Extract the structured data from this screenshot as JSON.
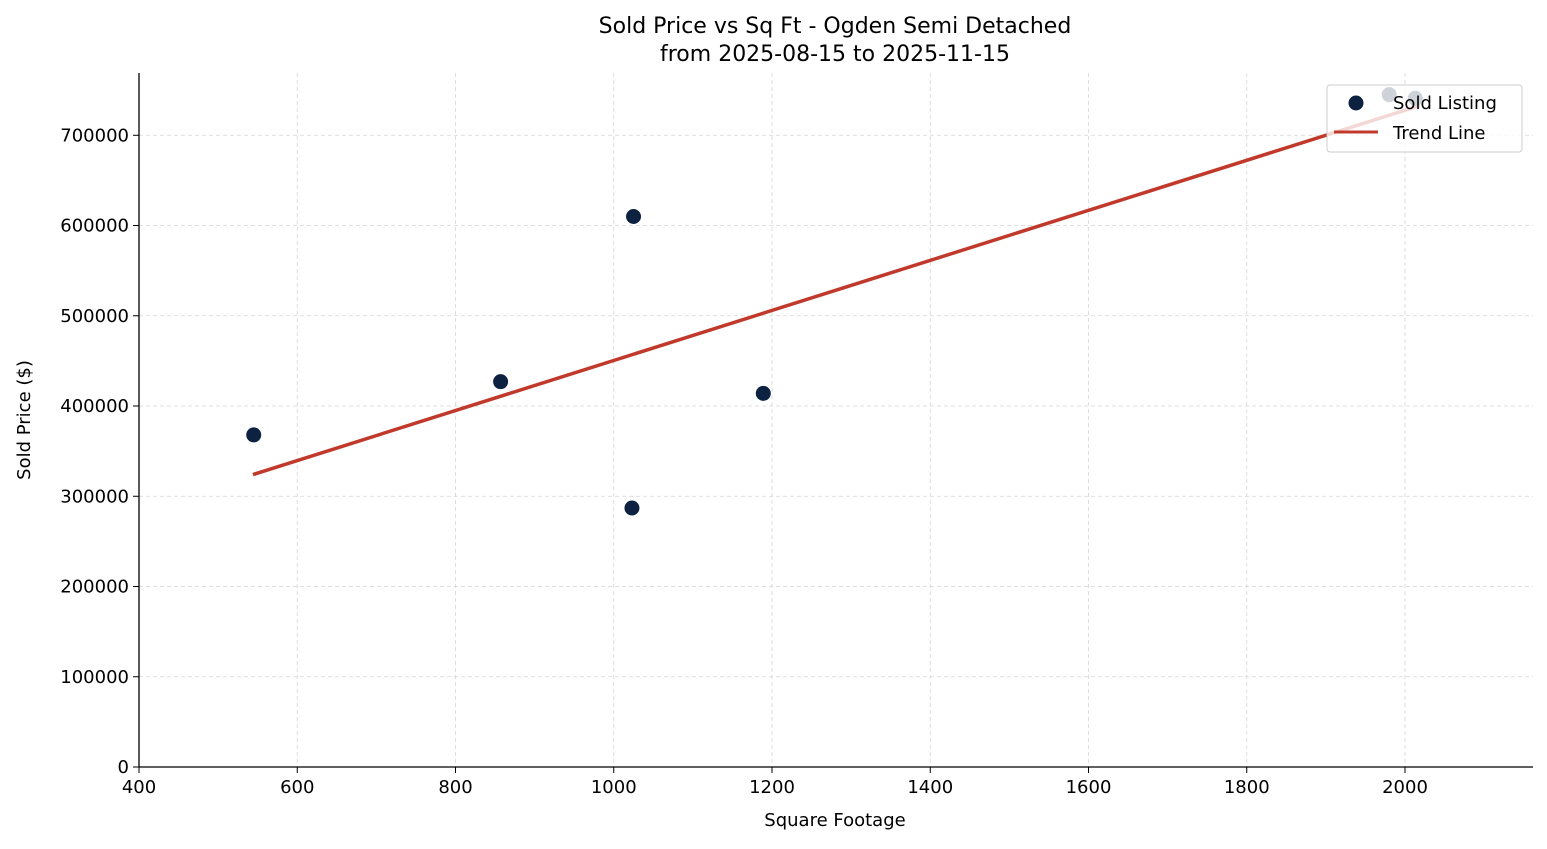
{
  "chart_data": {
    "type": "scatter",
    "title": "Sold Price vs Sq Ft - Ogden Semi Detached",
    "subtitle": "from 2025-08-15 to 2025-11-15",
    "xlabel": "Square Footage",
    "ylabel": "Sold Price ($)",
    "xlim": [
      398,
      2162
    ],
    "ylim": [
      0,
      769000
    ],
    "xticks": [
      400,
      600,
      800,
      1000,
      1200,
      1400,
      1600,
      1800,
      2000
    ],
    "yticks": [
      0,
      100000,
      200000,
      300000,
      400000,
      500000,
      600000,
      700000
    ],
    "grid": true,
    "legend_position": "top-right",
    "series": [
      {
        "name": "Sold Listing",
        "type": "scatter",
        "color": "#0d2240",
        "points": [
          [
            545,
            368000
          ],
          [
            857,
            427000
          ],
          [
            1025,
            610000
          ],
          [
            1023,
            287000
          ],
          [
            1189,
            414000
          ],
          [
            1980,
            745000
          ],
          [
            2013,
            741000
          ]
        ]
      },
      {
        "name": "Trend Line",
        "type": "line",
        "color": "#c0392b",
        "points": [
          [
            544,
            324000
          ],
          [
            2019,
            733000
          ]
        ]
      }
    ]
  }
}
